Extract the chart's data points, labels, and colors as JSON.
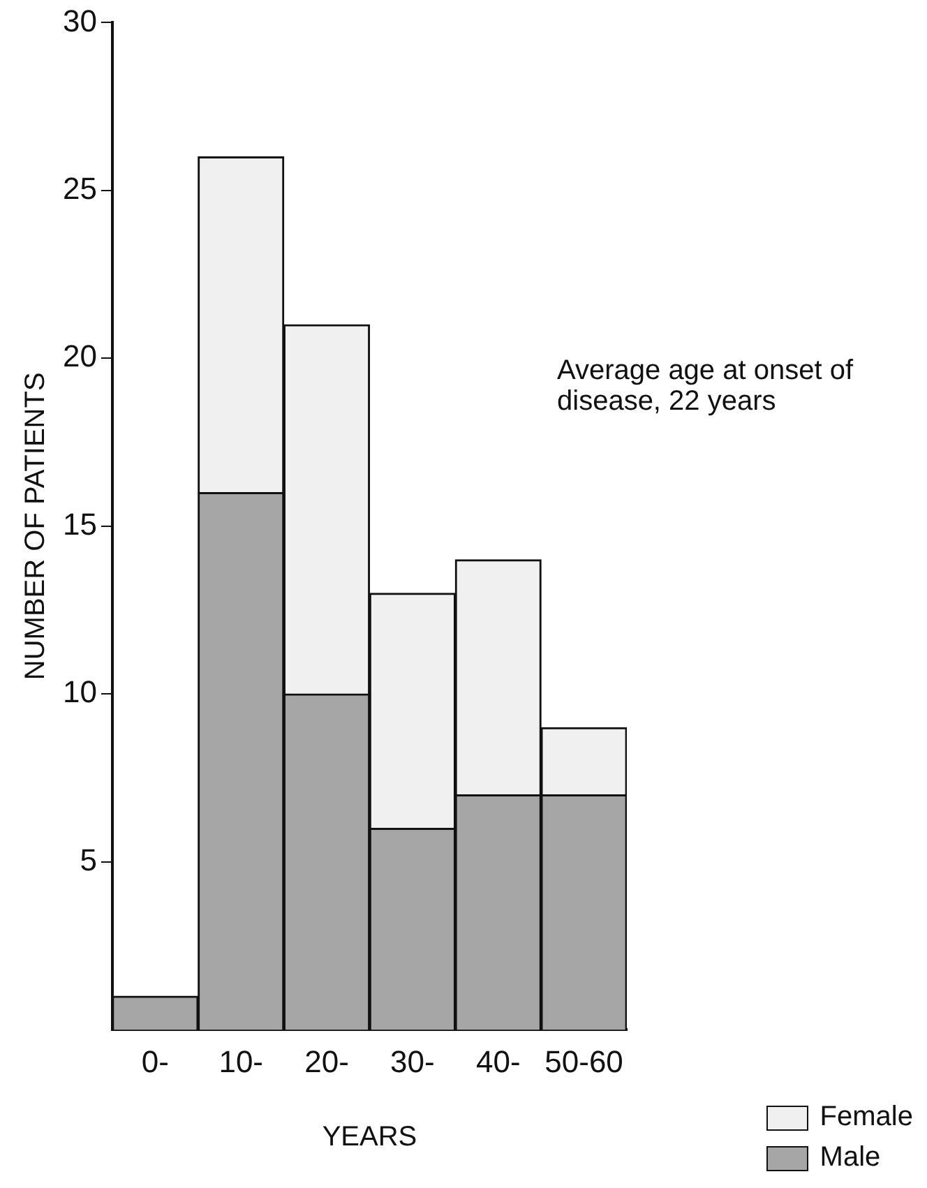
{
  "chart_data": {
    "type": "bar",
    "xlabel": "YEARS",
    "ylabel": "NUMBER OF PATIENTS",
    "categories": [
      "0-",
      "10-",
      "20-",
      "30-",
      "40-",
      "50-60"
    ],
    "stacked": true,
    "series": [
      {
        "name": "Male",
        "color": "#a6a6a6",
        "values": [
          1,
          16,
          10,
          6,
          7,
          7
        ]
      },
      {
        "name": "Female",
        "color": "#f0f0f0",
        "values": [
          0,
          10,
          11,
          7,
          7,
          2
        ]
      }
    ],
    "ylim": [
      0,
      30
    ],
    "yticks": [
      5,
      10,
      15,
      20,
      25,
      30
    ],
    "annotations": [
      "Average age at onset of disease, 22 years"
    ],
    "grid": false,
    "legend": "bottom right"
  }
}
